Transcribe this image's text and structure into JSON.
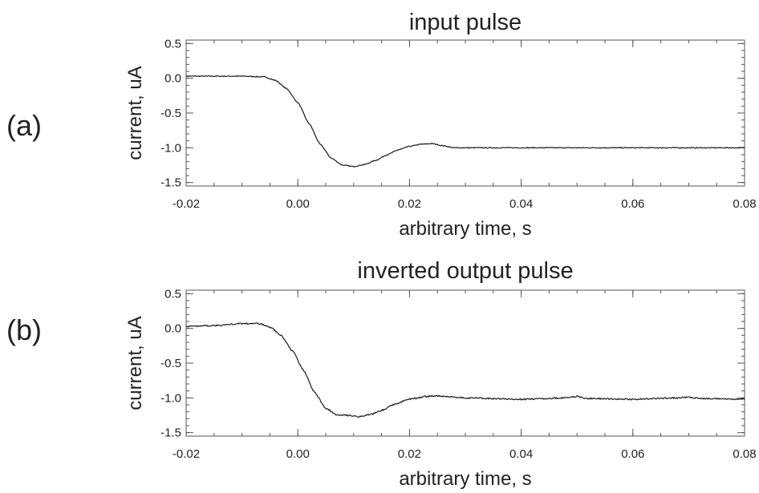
{
  "panels": [
    {
      "letter": "(a)"
    },
    {
      "letter": "(b)"
    }
  ],
  "chart_data": [
    {
      "type": "line",
      "title": "input pulse",
      "xlabel": "arbitrary time, s",
      "ylabel": "current, uA",
      "xlim": [
        -0.02,
        0.08
      ],
      "ylim": [
        -1.55,
        0.55
      ],
      "xticks": [
        "-0.02",
        "0.00",
        "0.02",
        "0.04",
        "0.06",
        "0.08"
      ],
      "yticks": [
        "0.5",
        "0.0",
        "-0.5",
        "-1.0",
        "-1.5"
      ],
      "grid": false,
      "series": [
        {
          "x": [
            -0.02,
            -0.01,
            -0.006,
            -0.004,
            -0.002,
            0.0,
            0.002,
            0.004,
            0.006,
            0.008,
            0.01,
            0.012,
            0.014,
            0.016,
            0.018,
            0.02,
            0.022,
            0.024,
            0.026,
            0.028,
            0.03,
            0.04,
            0.05,
            0.06,
            0.07,
            0.08
          ],
          "y": [
            0.03,
            0.03,
            0.02,
            -0.03,
            -0.15,
            -0.35,
            -0.65,
            -0.95,
            -1.15,
            -1.25,
            -1.27,
            -1.24,
            -1.18,
            -1.1,
            -1.03,
            -0.98,
            -0.95,
            -0.94,
            -0.97,
            -1.0,
            -1.0,
            -1.0,
            -1.0,
            -1.0,
            -1.0,
            -1.0
          ]
        }
      ]
    },
    {
      "type": "line",
      "title": "inverted output pulse",
      "xlabel": "arbitrary time, s",
      "ylabel": "current, uA",
      "xlim": [
        -0.02,
        0.08
      ],
      "ylim": [
        -1.55,
        0.55
      ],
      "xticks": [
        "-0.02",
        "0.00",
        "0.02",
        "0.04",
        "0.06",
        "0.08"
      ],
      "yticks": [
        "0.5",
        "0.0",
        "-0.5",
        "-1.0",
        "-1.5"
      ],
      "grid": false,
      "series": [
        {
          "x": [
            -0.02,
            -0.015,
            -0.01,
            -0.007,
            -0.005,
            -0.003,
            -0.001,
            0.001,
            0.003,
            0.005,
            0.007,
            0.009,
            0.011,
            0.013,
            0.015,
            0.017,
            0.02,
            0.023,
            0.025,
            0.028,
            0.03,
            0.04,
            0.048,
            0.05,
            0.052,
            0.06,
            0.068,
            0.07,
            0.072,
            0.08
          ],
          "y": [
            0.03,
            0.04,
            0.07,
            0.07,
            0.02,
            -0.1,
            -0.32,
            -0.6,
            -0.92,
            -1.15,
            -1.24,
            -1.25,
            -1.27,
            -1.24,
            -1.18,
            -1.1,
            -1.02,
            -0.98,
            -0.97,
            -0.99,
            -1.0,
            -1.02,
            -1.0,
            -0.98,
            -1.01,
            -1.02,
            -1.0,
            -0.99,
            -1.01,
            -1.02
          ]
        }
      ]
    }
  ]
}
